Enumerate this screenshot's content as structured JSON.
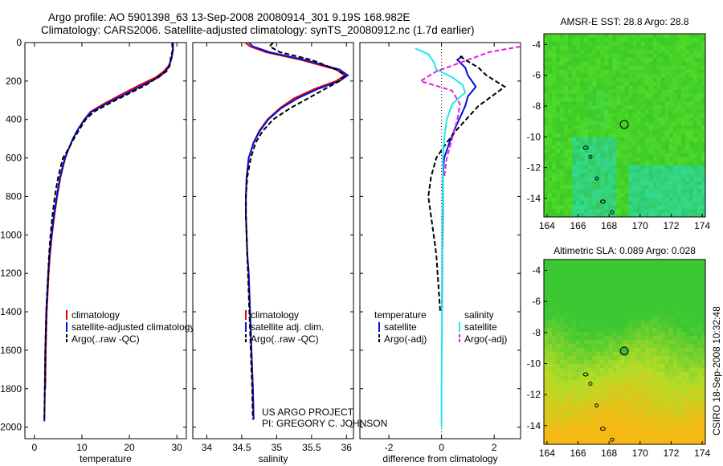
{
  "header": {
    "line1": "Argo profile: AO 5901398_63 13-Sep-2008 20080914_301 9.19S 168.982E",
    "line2": "Climatology: CARS2006. Satellite-adjusted climatology: synTS_20080912.nc (1.7d earlier)"
  },
  "credits": {
    "project": "US ARGO PROJECT",
    "pi": "PI: GREGORY C. JOHNSON",
    "stamp": "CSIRO 18-Sep-2008 10:32:48"
  },
  "colors": {
    "climatology": "#e00000",
    "satellite": "#0010d8",
    "argo": "#000000",
    "satellite_salinity": "#22e6ee",
    "argo_salinity": "#e020e0"
  },
  "chart_data": [
    {
      "type": "line",
      "xlabel": "temperature",
      "ylabel": "",
      "xlim": [
        -2,
        32
      ],
      "ylim": [
        2060,
        0
      ],
      "xticks": [
        0,
        10,
        20,
        30
      ],
      "yticks": [
        0,
        200,
        400,
        600,
        800,
        1000,
        1200,
        1400,
        1600,
        1800,
        2000
      ],
      "legend": [
        "climatology",
        "satellite-adjusted climatology",
        "Argo(..raw -QC)"
      ],
      "legend_position": "lower-right",
      "series": [
        {
          "name": "climatology",
          "style": "solid",
          "x": [
            29.2,
            29.2,
            28.9,
            28.3,
            27.2,
            25.6,
            22.2,
            18.3,
            14.5,
            11.8,
            10.5,
            9.2,
            8.1,
            7.1,
            6.5,
            5.5,
            4.8,
            4.2,
            3.7,
            3.3,
            3.0,
            2.8,
            2.6,
            2.5,
            2.4,
            2.3
          ],
          "y": [
            0,
            40,
            80,
            120,
            150,
            180,
            220,
            270,
            320,
            360,
            400,
            450,
            500,
            560,
            600,
            700,
            800,
            900,
            1000,
            1100,
            1200,
            1300,
            1400,
            1500,
            1600,
            1800
          ]
        },
        {
          "name": "satellite-adjusted climatology",
          "style": "solid",
          "x": [
            29.2,
            29.1,
            28.9,
            28.4,
            27.6,
            26.2,
            23.0,
            19.0,
            15.0,
            12.0,
            10.6,
            9.2,
            8.1,
            7.1,
            6.4,
            5.4,
            4.7,
            4.1,
            3.6,
            3.2,
            2.9,
            2.7,
            2.5,
            2.4,
            2.3,
            2.2,
            2.1
          ],
          "y": [
            0,
            40,
            80,
            120,
            150,
            180,
            220,
            270,
            320,
            360,
            400,
            450,
            500,
            560,
            600,
            700,
            800,
            900,
            1000,
            1100,
            1200,
            1300,
            1400,
            1500,
            1600,
            1800,
            1970
          ]
        },
        {
          "name": "Argo(..raw -QC)",
          "style": "dashed",
          "x": [
            29.0,
            29.1,
            28.7,
            28.5,
            27.8,
            26.0,
            23.5,
            19.5,
            15.5,
            12.5,
            10.8,
            9.5,
            8.3,
            7.0,
            6.0,
            5.0,
            4.3,
            3.8,
            3.4,
            3.1,
            2.9,
            2.7,
            2.5,
            2.4,
            2.3,
            2.2,
            2.1
          ],
          "y": [
            0,
            40,
            80,
            120,
            150,
            180,
            220,
            270,
            320,
            360,
            400,
            450,
            500,
            560,
            600,
            700,
            800,
            900,
            1000,
            1100,
            1200,
            1300,
            1400,
            1500,
            1600,
            1800,
            1970
          ]
        }
      ]
    },
    {
      "type": "line",
      "xlabel": "salinity",
      "ylabel": "",
      "xlim": [
        33.8,
        36.1
      ],
      "ylim": [
        2060,
        0
      ],
      "xticks": [
        34,
        34.5,
        35,
        35.5,
        36
      ],
      "legend": [
        "climatology",
        "satellite adj. clim.",
        "Argo(..raw -QC)"
      ],
      "legend_position": "lower-right",
      "series": [
        {
          "name": "climatology",
          "style": "solid",
          "x": [
            34.55,
            34.62,
            34.85,
            35.35,
            35.85,
            35.98,
            35.85,
            35.55,
            35.25,
            35.05,
            34.87,
            34.75,
            34.67,
            34.6,
            34.57,
            34.56,
            34.56,
            34.57,
            34.58,
            34.6,
            34.62,
            34.64,
            34.66,
            34.67
          ],
          "y": [
            0,
            20,
            50,
            90,
            140,
            170,
            200,
            240,
            290,
            340,
            400,
            460,
            520,
            600,
            700,
            800,
            900,
            1000,
            1100,
            1200,
            1400,
            1600,
            1800,
            1960
          ]
        },
        {
          "name": "satellite adj. clim.",
          "style": "solid",
          "x": [
            34.6,
            34.66,
            34.9,
            35.4,
            35.9,
            36.02,
            35.9,
            35.6,
            35.3,
            35.07,
            34.88,
            34.76,
            34.67,
            34.6,
            34.57,
            34.56,
            34.56,
            34.57,
            34.58,
            34.6,
            34.62,
            34.64,
            34.66,
            34.67
          ],
          "y": [
            0,
            20,
            50,
            90,
            140,
            170,
            200,
            240,
            290,
            340,
            400,
            460,
            520,
            600,
            700,
            800,
            900,
            1000,
            1100,
            1200,
            1400,
            1600,
            1800,
            1960
          ]
        },
        {
          "name": "Argo(..raw -QC)",
          "style": "dashed",
          "x": [
            34.95,
            34.9,
            35.05,
            35.5,
            35.85,
            35.98,
            35.9,
            35.7,
            35.45,
            35.2,
            34.95,
            34.8,
            34.7,
            34.63,
            34.58,
            34.56,
            34.56,
            34.57,
            34.58,
            34.59,
            34.61,
            34.63,
            34.65,
            34.66
          ],
          "y": [
            0,
            20,
            50,
            90,
            140,
            170,
            200,
            240,
            290,
            340,
            400,
            460,
            520,
            600,
            700,
            800,
            900,
            1000,
            1100,
            1200,
            1400,
            1600,
            1800,
            1960
          ]
        }
      ]
    },
    {
      "type": "line",
      "xlabel": "difference from climatology",
      "ylabel": "",
      "xlim": [
        -3.1,
        3.0
      ],
      "ylim": [
        2060,
        0
      ],
      "xticks": [
        -2,
        0,
        2
      ],
      "legend_titles": [
        "temperature",
        "salinity"
      ],
      "legend": [
        "satellite",
        "Argo(-adj)",
        "satellite",
        "Argo(-adj)"
      ],
      "legend_position": "lower-right",
      "series": [
        {
          "name": "satellite",
          "variable": "temperature",
          "style": "solid",
          "x": [
            0.8,
            0.6,
            0.9,
            1.0,
            1.3,
            1.0,
            0.9,
            0.7,
            0.5,
            0.3,
            0.1,
            0.05,
            0.05,
            0.05,
            0.04,
            0.03,
            0.03,
            0.02,
            0.02
          ],
          "y": [
            70,
            90,
            130,
            170,
            230,
            280,
            330,
            390,
            450,
            520,
            600,
            700,
            800,
            900,
            1000,
            1100,
            1200,
            1300,
            1400
          ]
        },
        {
          "name": "Argo(-adj)",
          "variable": "temperature",
          "style": "dashed",
          "x": [
            0.7,
            0.9,
            1.4,
            1.7,
            2.4,
            1.9,
            1.4,
            1.0,
            0.6,
            0.2,
            -0.2,
            -0.4,
            -0.5,
            -0.4,
            -0.3,
            -0.2,
            -0.15,
            -0.1,
            -0.05
          ],
          "y": [
            70,
            90,
            130,
            170,
            230,
            280,
            330,
            390,
            450,
            520,
            600,
            700,
            800,
            900,
            1000,
            1100,
            1200,
            1300,
            1400
          ]
        },
        {
          "name": "satellite",
          "variable": "salinity",
          "style": "solid",
          "x": [
            -1.0,
            -0.5,
            -0.3,
            -0.2,
            0.4,
            0.8,
            0.9,
            0.4,
            0.2,
            0.1,
            0.05,
            0.05,
            0.04,
            0.03,
            0.02,
            0.02,
            0.01,
            0.0,
            0.0,
            0.0
          ],
          "y": [
            30,
            60,
            100,
            140,
            180,
            220,
            260,
            320,
            400,
            500,
            600,
            700,
            800,
            1000,
            1200,
            1400,
            1600,
            1800,
            1900,
            2000
          ]
        },
        {
          "name": "Argo(-adj)",
          "variable": "salinity",
          "style": "dashed",
          "x": [
            3.0,
            1.8,
            1.2,
            0.6,
            -0.2,
            -0.8,
            0.4,
            0.7,
            0.6,
            0.4,
            0.2,
            0.1
          ],
          "y": [
            20,
            50,
            80,
            110,
            150,
            200,
            250,
            320,
            400,
            500,
            600,
            700
          ]
        }
      ]
    },
    {
      "type": "heatmap",
      "title": "AMSR-E SST: 28.8 Argo: 28.8",
      "xlim": [
        163.8,
        174.2
      ],
      "ylim": [
        -15.2,
        -3.3
      ],
      "xticks": [
        164,
        166,
        168,
        170,
        172,
        174
      ],
      "yticks": [
        -4,
        -6,
        -8,
        -10,
        -12,
        -14
      ],
      "argo_position": [
        168.98,
        -9.19
      ]
    },
    {
      "type": "heatmap",
      "title": "Altimetric SLA: 0.089 Argo: 0.028",
      "xlim": [
        163.8,
        174.2
      ],
      "ylim": [
        -15.2,
        -3.3
      ],
      "xticks": [
        164,
        166,
        168,
        170,
        172,
        174
      ],
      "yticks": [
        -4,
        -6,
        -8,
        -10,
        -12,
        -14
      ],
      "argo_position": [
        168.98,
        -9.19
      ]
    }
  ]
}
